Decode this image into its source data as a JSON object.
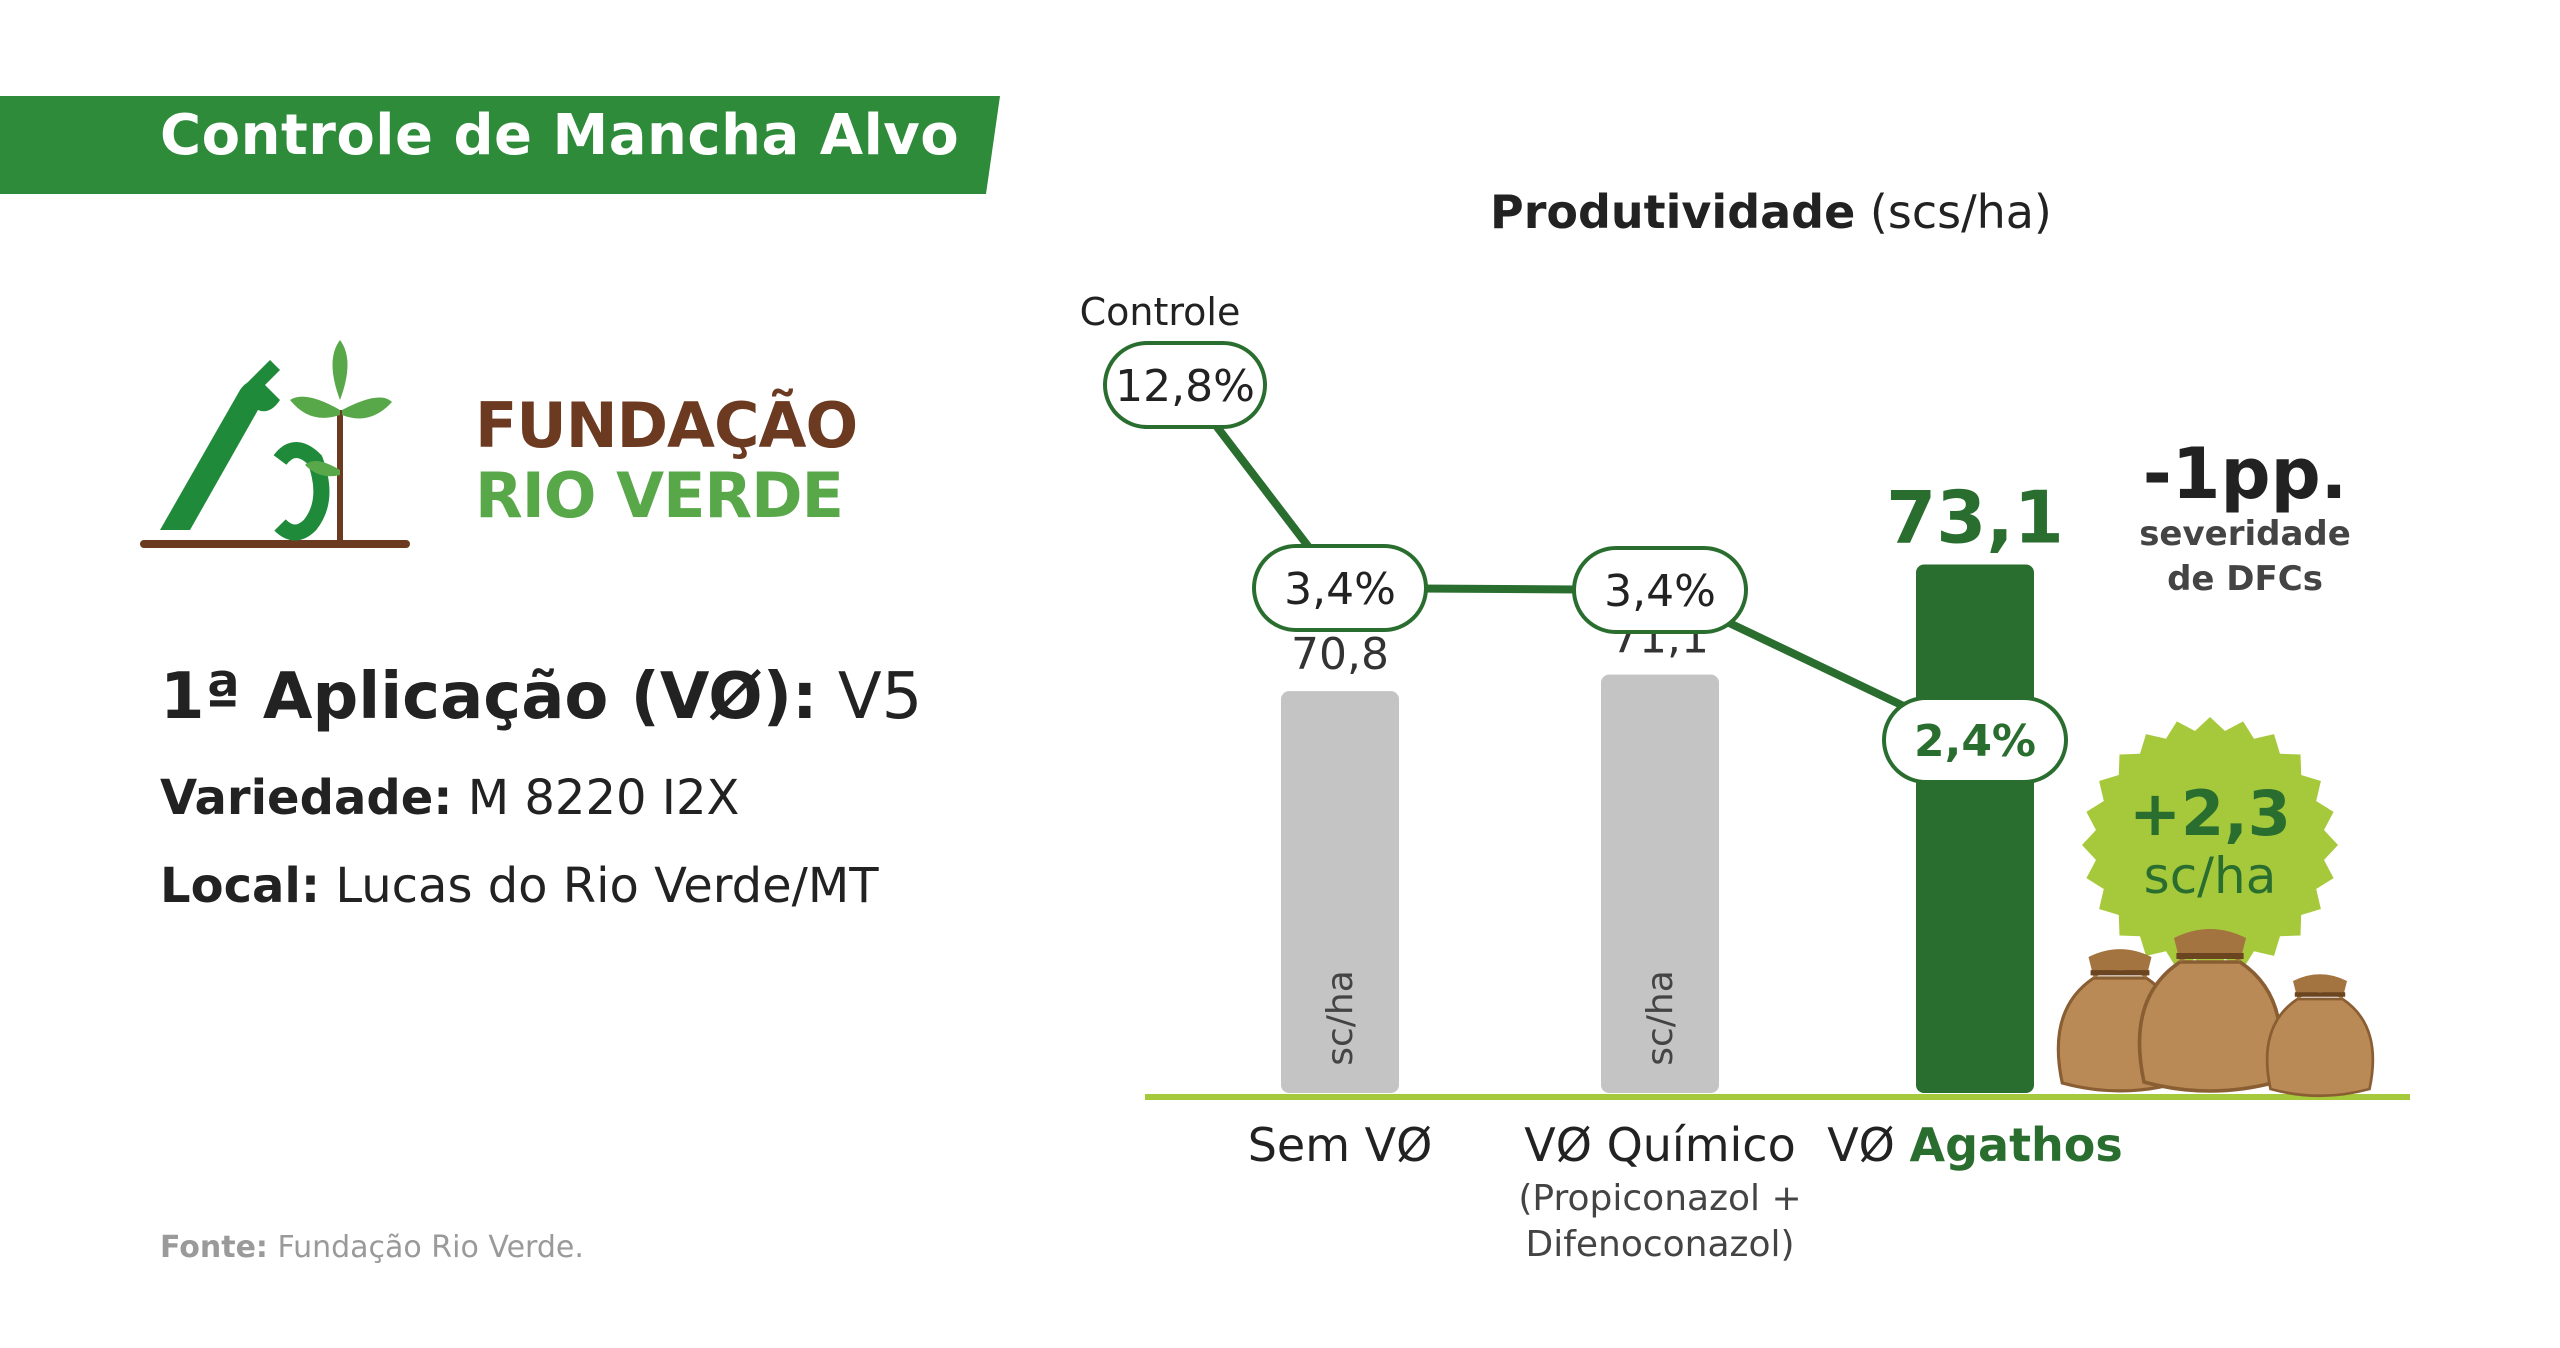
{
  "header": {
    "title": "Controle de Mancha Alvo"
  },
  "logo": {
    "line1": "FUNDAÇÃO",
    "line2": "RIO VERDE"
  },
  "info": {
    "app_label": "1ª Aplicação (VØ):",
    "app_value": " V5",
    "variety_label": "Variedade:",
    "variety_value": " M 8220 I2X",
    "local_label": "Local:",
    "local_value": " Lucas do Rio Verde/MT"
  },
  "footer": {
    "source_label": "Fonte:",
    "source_value": " Fundação Rio Verde."
  },
  "colors": {
    "brand_green": "#2e8b3a",
    "dark_green": "#2a6e2f",
    "lime": "#a6c93c",
    "gray_bar": "#c4c4c4"
  },
  "chart_data": {
    "type": "bar",
    "title": "Produtividade",
    "title_unit": "(scs/ha)",
    "unit_label": "sc/ha",
    "categories": [
      {
        "label": "Sem VØ",
        "sub": []
      },
      {
        "label": "VØ Químico",
        "sub": [
          "(Propiconazol +",
          "Difenoconazol)"
        ]
      },
      {
        "label_prefix": "VØ ",
        "label": "Agathos",
        "sub": []
      }
    ],
    "values": [
      70.8,
      71.1,
      73.1
    ],
    "value_labels": [
      "70,8",
      "71,1",
      "73,1"
    ],
    "ylim": [
      0,
      74
    ],
    "highlight_index": 2,
    "severity_series": {
      "control_label": "Controle",
      "control_value": 12.8,
      "control_text": "12,8%",
      "values": [
        3.4,
        3.4,
        2.4
      ],
      "texts": [
        "3,4%",
        "3,4%",
        "2,4%"
      ]
    },
    "annotations": {
      "delta_severity": "-1pp.",
      "delta_severity_line1": "severidade",
      "delta_severity_line2": "de DFCs",
      "gain_value": "+2,3",
      "gain_unit": "sc/ha"
    }
  }
}
